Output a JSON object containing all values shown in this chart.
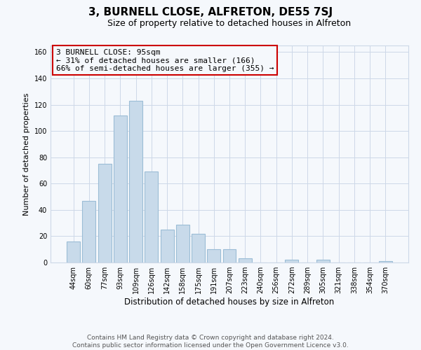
{
  "title": "3, BURNELL CLOSE, ALFRETON, DE55 7SJ",
  "subtitle": "Size of property relative to detached houses in Alfreton",
  "xlabel": "Distribution of detached houses by size in Alfreton",
  "ylabel": "Number of detached properties",
  "categories": [
    "44sqm",
    "60sqm",
    "77sqm",
    "93sqm",
    "109sqm",
    "126sqm",
    "142sqm",
    "158sqm",
    "175sqm",
    "191sqm",
    "207sqm",
    "223sqm",
    "240sqm",
    "256sqm",
    "272sqm",
    "289sqm",
    "305sqm",
    "321sqm",
    "338sqm",
    "354sqm",
    "370sqm"
  ],
  "values": [
    16,
    47,
    75,
    112,
    123,
    69,
    25,
    29,
    22,
    10,
    10,
    3,
    0,
    0,
    2,
    0,
    2,
    0,
    0,
    0,
    1
  ],
  "bar_color": "#c8daea",
  "bar_edge_color": "#9bbdd6",
  "annotation_line1": "3 BURNELL CLOSE: 95sqm",
  "annotation_line2": "← 31% of detached houses are smaller (166)",
  "annotation_line3": "66% of semi-detached houses are larger (355) →",
  "annotation_box_edge_color": "#cc0000",
  "ylim": [
    0,
    165
  ],
  "yticks": [
    0,
    20,
    40,
    60,
    80,
    100,
    120,
    140,
    160
  ],
  "footer_line1": "Contains HM Land Registry data © Crown copyright and database right 2024.",
  "footer_line2": "Contains public sector information licensed under the Open Government Licence v3.0.",
  "background_color": "#f5f8fc",
  "grid_color": "#cdd8e8",
  "title_fontsize": 11,
  "subtitle_fontsize": 9,
  "ylabel_fontsize": 8,
  "xlabel_fontsize": 8.5,
  "tick_fontsize": 7,
  "annotation_fontsize": 8,
  "footer_fontsize": 6.5
}
